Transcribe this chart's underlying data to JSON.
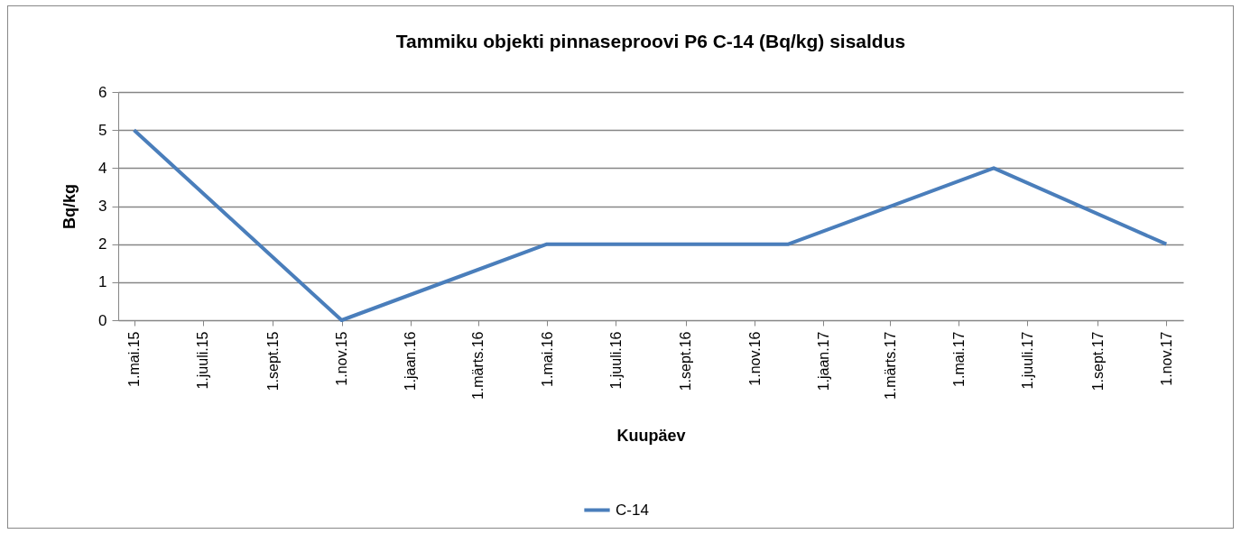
{
  "chart_data": {
    "type": "line",
    "title": "Tammiku objekti pinnaseproovi P6 C-14 (Bq/kg) sisaldus",
    "xlabel": "Kuupäev",
    "ylabel": "Bq/kg",
    "x": [
      "2015-05-01",
      "2015-11-01",
      "2016-05-01",
      "2016-12-01",
      "2017-06-01",
      "2017-11-01"
    ],
    "series": [
      {
        "name": "C-14",
        "color": "#4a7ebb",
        "values": [
          5,
          0,
          2,
          2,
          4,
          2
        ]
      }
    ],
    "xlim": [
      "2015-04-17",
      "2017-11-16"
    ],
    "xticks": [
      {
        "value": "2015-05-01",
        "label": "1.mai.15"
      },
      {
        "value": "2015-07-01",
        "label": "1.juuli.15"
      },
      {
        "value": "2015-09-01",
        "label": "1.sept.15"
      },
      {
        "value": "2015-11-01",
        "label": "1.nov.15"
      },
      {
        "value": "2016-01-01",
        "label": "1.jaan.16"
      },
      {
        "value": "2016-03-01",
        "label": "1.märts.16"
      },
      {
        "value": "2016-05-01",
        "label": "1.mai.16"
      },
      {
        "value": "2016-07-01",
        "label": "1.juuli.16"
      },
      {
        "value": "2016-09-01",
        "label": "1.sept.16"
      },
      {
        "value": "2016-11-01",
        "label": "1.nov.16"
      },
      {
        "value": "2017-01-01",
        "label": "1.jaan.17"
      },
      {
        "value": "2017-03-01",
        "label": "1.märts.17"
      },
      {
        "value": "2017-05-01",
        "label": "1.mai.17"
      },
      {
        "value": "2017-07-01",
        "label": "1.juuli.17"
      },
      {
        "value": "2017-09-01",
        "label": "1.sept.17"
      },
      {
        "value": "2017-11-01",
        "label": "1.nov.17"
      }
    ],
    "ylim": [
      0,
      6
    ],
    "yticks": [
      0,
      1,
      2,
      3,
      4,
      5,
      6
    ],
    "grid": "y",
    "legend": "bottom"
  }
}
